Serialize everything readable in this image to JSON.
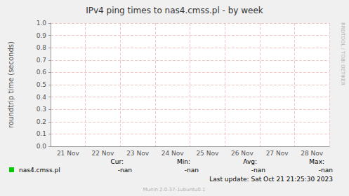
{
  "chart_data": {
    "type": "line",
    "title": "IPv4 ping times to nas4.cmss.pl - by week",
    "y_label": "roundtrip time (seconds)",
    "categories": [
      "21 Nov",
      "22 Nov",
      "23 Nov",
      "24 Nov",
      "25 Nov",
      "26 Nov",
      "27 Nov",
      "28 Nov"
    ],
    "series": [
      {
        "name": "nas4.cmss.pl",
        "color": "#00cc00",
        "values": [
          null,
          null,
          null,
          null,
          null,
          null,
          null,
          null
        ]
      }
    ],
    "ylim": [
      0,
      1
    ],
    "yticks": [
      {
        "value": 0,
        "label": "0.0"
      },
      0.1,
      0.2,
      0.3,
      0.4,
      0.5,
      0.6,
      0.7,
      0.8,
      0.9,
      {
        "value": 1,
        "label": "1.0"
      }
    ],
    "grid": true,
    "stats": [
      {
        "label": "Cur:",
        "value": "-nan"
      },
      {
        "label": "Min:",
        "value": "-nan"
      },
      {
        "label": "Avg:",
        "value": "-nan"
      },
      {
        "label": "Max:",
        "value": "-nan"
      }
    ],
    "last_update": "Last update: Sat Oct 21 21:25:30 2023",
    "footer": "Munin 2.0.37-1ubuntu0.1",
    "watermark": "RRDTOOL / TOBI OETIKER"
  }
}
